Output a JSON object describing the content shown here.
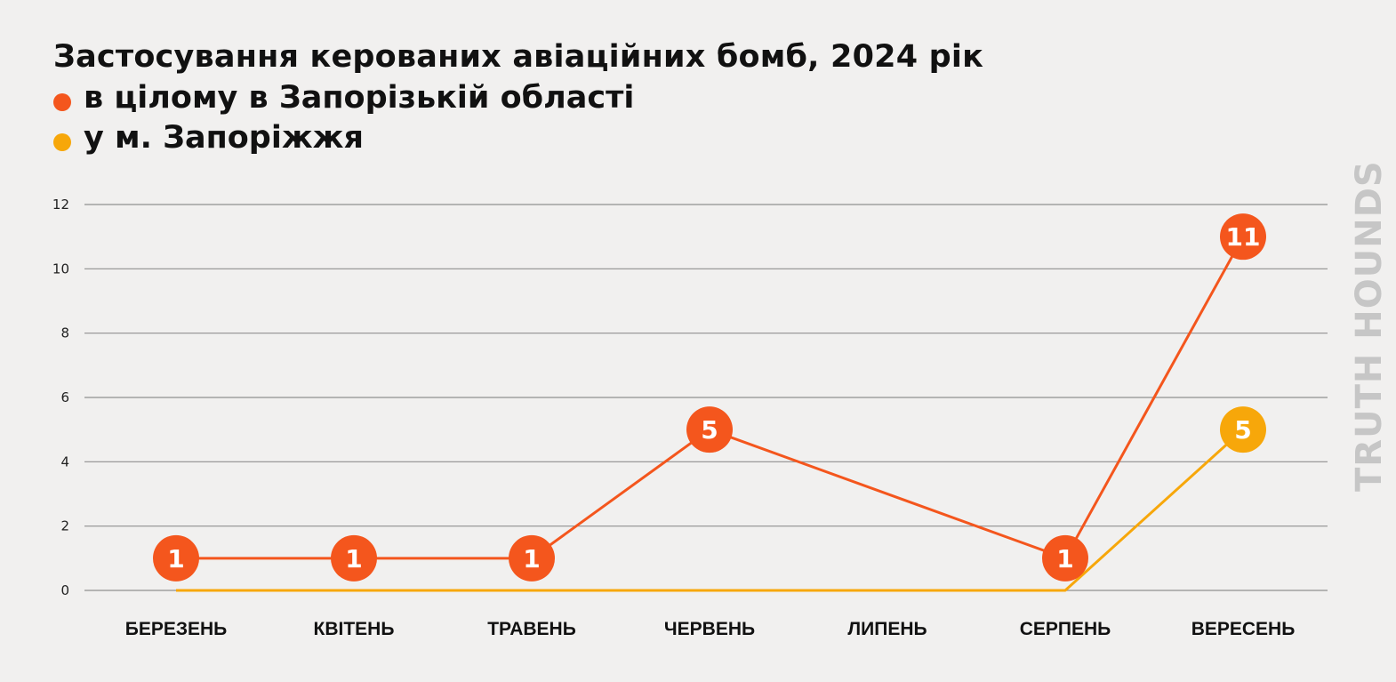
{
  "chart_data": {
    "type": "line",
    "title": "Застосування керованих авіаційних бомб, 2024 рік",
    "categories": [
      "БЕРЕЗЕНЬ",
      "КВІТЕНЬ",
      "ТРАВЕНЬ",
      "ЧЕРВЕНЬ",
      "ЛИПЕНЬ",
      "СЕРПЕНЬ",
      "ВЕРЕСЕНЬ"
    ],
    "ylim": [
      0,
      12
    ],
    "yticks": [
      0,
      2,
      4,
      6,
      8,
      10,
      12
    ],
    "grid": true,
    "legend_position": "top-left",
    "series": [
      {
        "name": "в цілому в Запорізькій області",
        "color": "#f4561d",
        "values": [
          1,
          1,
          1,
          5,
          null,
          1,
          11
        ],
        "labels": [
          "1",
          "1",
          "1",
          "5",
          "",
          "1",
          "11"
        ]
      },
      {
        "name": "у м. Запоріжжя",
        "color": "#f7a70a",
        "values": [
          0,
          0,
          0,
          0,
          0,
          0,
          5
        ],
        "labels": [
          "",
          "",
          "",
          "",
          "",
          "",
          "5"
        ]
      }
    ]
  },
  "watermark": "TRUTH HOUNDS"
}
